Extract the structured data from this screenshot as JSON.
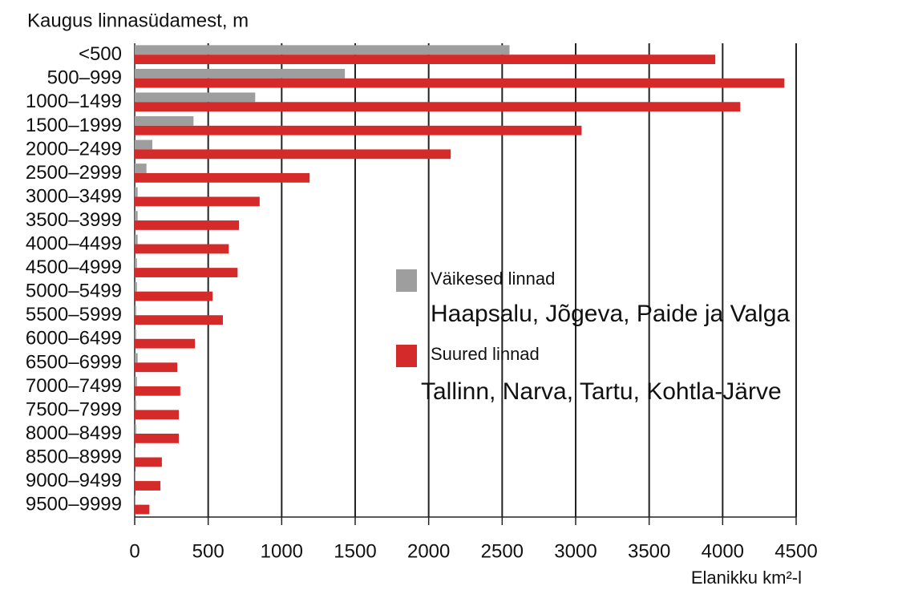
{
  "chart_data": {
    "type": "barh",
    "title": "Kaugus linnasüdamest, m",
    "x_label": "Elanikku km²-l",
    "categories": [
      "<500",
      "500–999",
      "1000–1499",
      "1500–1999",
      "2000–2499",
      "2500–2999",
      "3000–3499",
      "3500–3999",
      "4000–4499",
      "4500–4999",
      "5000–5499",
      "5500–5999",
      "6000–6499",
      "6500–6999",
      "7000–7499",
      "7500–7999",
      "8000–8499",
      "8500–8999",
      "9000–9499",
      "9500–9999"
    ],
    "series": [
      {
        "name": "Väikesed linnad",
        "description": "Haapsalu, Jõgeva, Paide ja Valga",
        "color": "#9e9e9e",
        "values": [
          2550,
          1430,
          820,
          400,
          120,
          80,
          20,
          20,
          20,
          15,
          15,
          10,
          10,
          20,
          15,
          10,
          10,
          5,
          5,
          5
        ]
      },
      {
        "name": "Suured linnad",
        "description": "Tallinn, Narva, Tartu, Kohtla-Järve",
        "color": "#d42a2a",
        "values": [
          3950,
          4420,
          4120,
          3040,
          2150,
          1190,
          850,
          710,
          640,
          700,
          530,
          600,
          410,
          290,
          310,
          300,
          300,
          185,
          175,
          100
        ]
      }
    ],
    "xlim": [
      0,
      4500
    ],
    "xticks": [
      0,
      500,
      1000,
      1500,
      2000,
      2500,
      3000,
      3500,
      4000,
      4500
    ],
    "grid": true
  }
}
